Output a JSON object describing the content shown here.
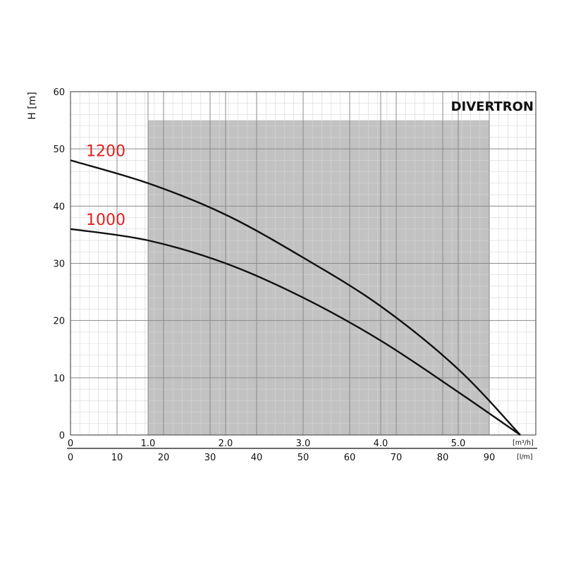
{
  "chart_data": {
    "type": "line",
    "brand": "DIVERTRON",
    "ylabel": "H [m]",
    "x_unit_top": "[m³/h]",
    "x_unit_bottom": "[l/m]",
    "ylim": [
      0,
      60
    ],
    "xlim_m3h": [
      0,
      6.0
    ],
    "xlim_lmin": [
      0,
      100
    ],
    "y_ticks": [
      "0",
      "10",
      "20",
      "30",
      "40",
      "50",
      "60"
    ],
    "x_ticks_top": [
      "0",
      "1.0",
      "2.0",
      "3.0",
      "4.0",
      "5.0"
    ],
    "x_ticks_bottom": [
      "0",
      "10",
      "20",
      "30",
      "40",
      "50",
      "60",
      "70",
      "80",
      "90"
    ],
    "grid": true,
    "operating_range_m3h": [
      1.0,
      5.4
    ],
    "series_label_color": "#e02020",
    "series": [
      {
        "name": "1200",
        "x": [
          0,
          1.0,
          2.0,
          3.0,
          4.0,
          5.0,
          5.8
        ],
        "y": [
          48,
          44,
          38.5,
          31,
          22.5,
          11.5,
          0
        ]
      },
      {
        "name": "1000",
        "x": [
          0,
          1.0,
          2.0,
          3.0,
          4.0,
          5.0,
          5.8
        ],
        "y": [
          36,
          34,
          30,
          24,
          16.5,
          7.5,
          0
        ]
      }
    ]
  }
}
